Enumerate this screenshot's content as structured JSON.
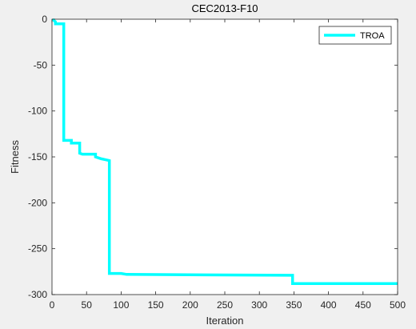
{
  "chart_data": {
    "type": "line",
    "title": "CEC2013-F10",
    "xlabel": "Iteration",
    "ylabel": "Fitness",
    "xlim": [
      0,
      500
    ],
    "ylim": [
      -300,
      0
    ],
    "xticks": [
      0,
      50,
      100,
      150,
      200,
      250,
      300,
      350,
      400,
      450,
      500
    ],
    "yticks": [
      0,
      -50,
      -100,
      -150,
      -200,
      -250,
      -300
    ],
    "xtick_labels": [
      "0",
      "50",
      "100",
      "150",
      "200",
      "250",
      "300",
      "350",
      "400",
      "450",
      "500"
    ],
    "ytick_labels": [
      "0",
      "-50",
      "-100",
      "-150",
      "-200",
      "-250",
      "-300"
    ],
    "grid": false,
    "legend_position": "top-right",
    "series": [
      {
        "name": "TROA",
        "color": "#00ffff",
        "x": [
          1,
          5,
          5,
          17,
          17,
          20,
          28,
          28,
          40,
          40,
          44,
          63,
          63,
          71,
          83,
          83,
          100,
          108,
          345,
          348,
          348,
          500
        ],
        "y": [
          0,
          -3,
          -5,
          -5,
          -132,
          -132,
          -132,
          -135,
          -135,
          -146,
          -147,
          -147,
          -150,
          -152,
          -154,
          -277,
          -277,
          -278,
          -279,
          -279,
          -288,
          -288
        ]
      }
    ]
  }
}
